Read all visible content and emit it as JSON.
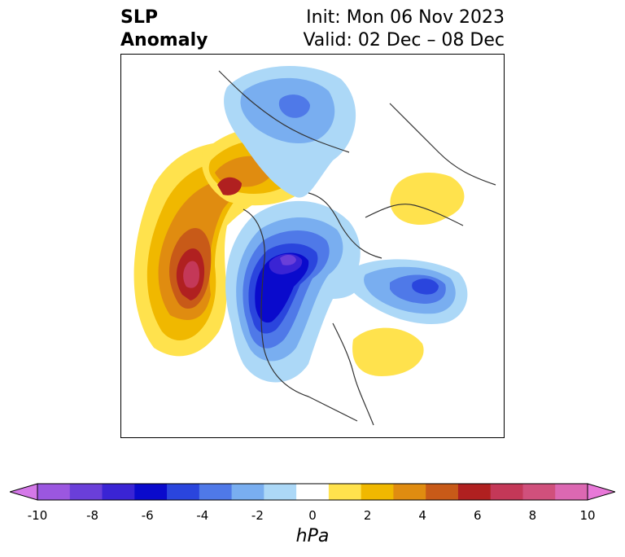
{
  "title": {
    "left": [
      "SLP",
      "Anomaly"
    ],
    "right": [
      "Init: Mon 06 Nov 2023",
      "Valid: 02 Dec – 08 Dec"
    ]
  },
  "colorbar": {
    "unit": "hPa",
    "ticks": [
      "-10",
      "-8",
      "-6",
      "-4",
      "-2",
      "0",
      "2",
      "4",
      "6",
      "8",
      "10"
    ],
    "colors": [
      "#d478e8",
      "#9b57e0",
      "#6a3fd9",
      "#3a24d4",
      "#0a0acc",
      "#2a45dd",
      "#4f79e8",
      "#79aef0",
      "#acd8f7",
      "#ffffff",
      "#ffe24d",
      "#f0b800",
      "#e08c10",
      "#c85a18",
      "#b02020",
      "#c43858",
      "#d0507c",
      "#dc68b2",
      "#e878d8"
    ]
  },
  "map": {
    "anomalies": [
      {
        "name": "pacific-high",
        "sign": "positive",
        "peak": 8
      },
      {
        "name": "northwest-canada-high",
        "sign": "positive",
        "peak": 6
      },
      {
        "name": "siberia-high",
        "sign": "positive",
        "peak": 2
      },
      {
        "name": "north-atlantic-high",
        "sign": "positive",
        "peak": 2
      },
      {
        "name": "arctic-canada-low",
        "sign": "negative",
        "peak": -8
      },
      {
        "name": "eurasia-arctic-low",
        "sign": "negative",
        "peak": -4
      },
      {
        "name": "scandinavia-low",
        "sign": "negative",
        "peak": -6
      }
    ]
  }
}
